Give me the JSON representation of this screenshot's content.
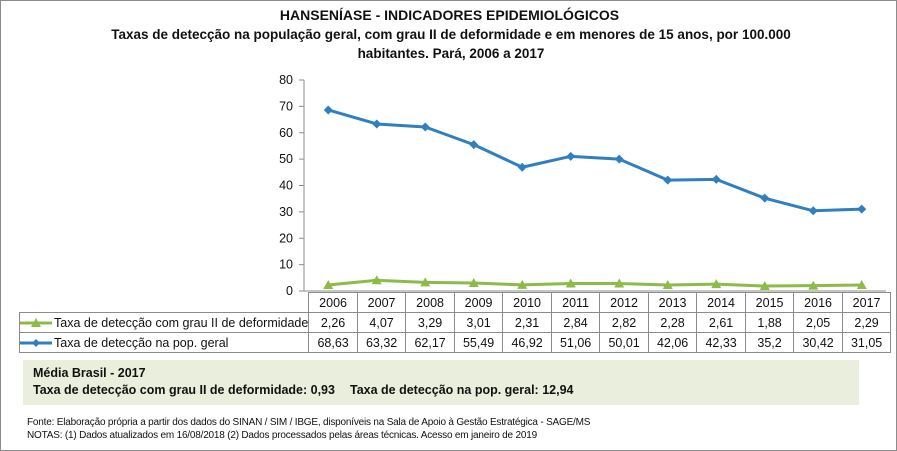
{
  "chart_data": {
    "type": "line",
    "title": "HANSENÍASE - INDICADORES EPIDEMIOLÓGICOS",
    "subtitle": "Taxas de detecção na população geral, com grau II de deformidade e em menores de 15 anos, por 100.000 habitantes. Pará, 2006 a 2017",
    "categories": [
      "2006",
      "2007",
      "2008",
      "2009",
      "2010",
      "2011",
      "2012",
      "2013",
      "2014",
      "2015",
      "2016",
      "2017"
    ],
    "ylim": [
      0,
      80
    ],
    "yticks": [
      0,
      10,
      20,
      30,
      40,
      50,
      60,
      70,
      80
    ],
    "grid": false,
    "legend": "data-table",
    "series": [
      {
        "name": "Taxa de detecção com grau II de deformidade",
        "color": "#8cbb4a",
        "marker": "triangle",
        "values": [
          2.26,
          4.07,
          3.29,
          3.01,
          2.31,
          2.84,
          2.82,
          2.28,
          2.61,
          1.88,
          2.05,
          2.29
        ],
        "labels": [
          "2,26",
          "4,07",
          "3,29",
          "3,01",
          "2,31",
          "2,84",
          "2,82",
          "2,28",
          "2,61",
          "1,88",
          "2,05",
          "2,29"
        ]
      },
      {
        "name": "Taxa de detecção na pop. geral",
        "color": "#2f7fc1",
        "marker": "diamond",
        "values": [
          68.63,
          63.32,
          62.17,
          55.49,
          46.92,
          51.06,
          50.01,
          42.06,
          42.33,
          35.2,
          30.42,
          31.05
        ],
        "labels": [
          "68,63",
          "63,32",
          "62,17",
          "55,49",
          "46,92",
          "51,06",
          "50,01",
          "42,06",
          "42,33",
          "35,2",
          "30,42",
          "31,05"
        ]
      }
    ]
  },
  "average": {
    "heading": "Média Brasil - 2017",
    "deformity": "Taxa de detecção com grau II de deformidade: 0,93",
    "general": "Taxa de detecção na pop. geral: 12,94"
  },
  "footer": {
    "source": "Fonte:  Elaboração própria a partir dos dados do  SINAN / SIM / IBGE, disponíveis na Sala de Apoio à Gestão Estratégica - SAGE/MS",
    "notes": "NOTAS: (1) Dados atualizados em 16/08/2018 (2) Dados processados pelas áreas técnicas. Acesso em janeiro de 2019"
  }
}
